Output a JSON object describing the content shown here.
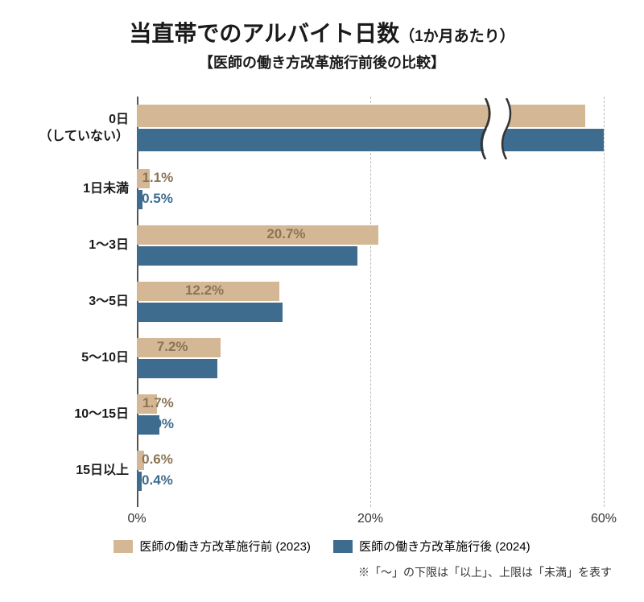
{
  "title_main": "当直帯でのアルバイト日数",
  "title_sub": "（1か月あたり）",
  "subtitle": "【医師の働き方改革施行前後の比較】",
  "chart": {
    "type": "bar",
    "orientation": "horizontal",
    "categories": [
      {
        "label": "0日\n（していない）",
        "a": 56.4,
        "b": 58.9,
        "a_display": 96,
        "b_display": 100
      },
      {
        "label": "1日未満",
        "a": 1.1,
        "b": 0.5
      },
      {
        "label": "1～3日",
        "a": 20.7,
        "b": 18.9
      },
      {
        "label": "3～5日",
        "a": 12.2,
        "b": 12.5
      },
      {
        "label": "5～10日",
        "a": 7.2,
        "b": 6.9
      },
      {
        "label": "10～15日",
        "a": 1.7,
        "b": 1.9
      },
      {
        "label": "15日以上",
        "a": 0.6,
        "b": 0.4
      }
    ],
    "series": {
      "a": {
        "label": "医師の働き方改革施行前 (2023)",
        "color": "#d4b896",
        "text_color": "#8a7555"
      },
      "b": {
        "label": "医師の働き方改革施行後 (2024)",
        "color": "#3e6c8e",
        "text_color": "#3e6c8e"
      }
    },
    "xaxis": {
      "ticks": [
        0,
        20,
        60
      ],
      "tick_labels": [
        "0%",
        "20%",
        "60%"
      ],
      "grid_positions_pct": [
        0,
        50,
        100
      ]
    },
    "has_axis_break": true,
    "break_position_pct": 77,
    "grid_color": "#b8b8b8",
    "baseline_color": "#555555",
    "background": "#ffffff"
  },
  "footnote": "※「～」の下限は「以上」、上限は「未満」を表す"
}
